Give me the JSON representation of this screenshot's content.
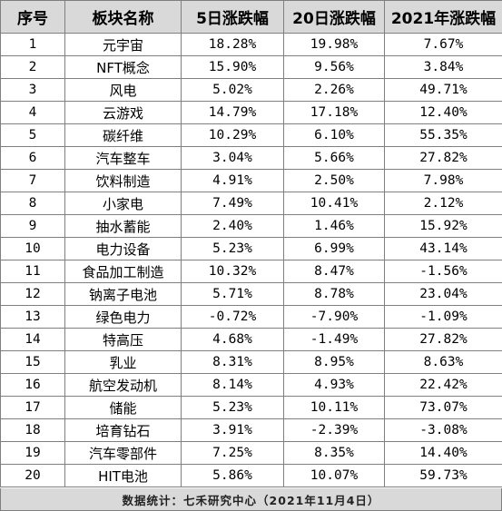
{
  "headers": [
    "序号",
    "板块名称",
    "5日涨跌幅",
    "20日涨跌幅",
    "2021年涨跌幅"
  ],
  "rows": [
    [
      "1",
      "元宇宙",
      "18.28%",
      "19.98%",
      "7.67%"
    ],
    [
      "2",
      "NFT概念",
      "15.90%",
      "9.56%",
      "3.84%"
    ],
    [
      "3",
      "风电",
      "5.02%",
      "2.26%",
      "49.71%"
    ],
    [
      "4",
      "云游戏",
      "14.79%",
      "17.18%",
      "12.40%"
    ],
    [
      "5",
      "碳纤维",
      "10.29%",
      "6.10%",
      "55.35%"
    ],
    [
      "6",
      "汽车整车",
      "3.04%",
      "5.66%",
      "27.82%"
    ],
    [
      "7",
      "饮料制造",
      "4.91%",
      "2.50%",
      "7.98%"
    ],
    [
      "8",
      "小家电",
      "7.49%",
      "10.41%",
      "2.12%"
    ],
    [
      "9",
      "抽水蓄能",
      "2.40%",
      "1.46%",
      "15.92%"
    ],
    [
      "10",
      "电力设备",
      "5.23%",
      "6.99%",
      "43.14%"
    ],
    [
      "11",
      "食品加工制造",
      "10.32%",
      "8.47%",
      "-1.56%"
    ],
    [
      "12",
      "钠离子电池",
      "5.71%",
      "8.78%",
      "23.04%"
    ],
    [
      "13",
      "绿色电力",
      "-0.72%",
      "-7.90%",
      "-1.09%"
    ],
    [
      "14",
      "特高压",
      "4.68%",
      "-1.49%",
      "27.82%"
    ],
    [
      "15",
      "乳业",
      "8.31%",
      "8.95%",
      "8.63%"
    ],
    [
      "16",
      "航空发动机",
      "8.14%",
      "4.93%",
      "22.42%"
    ],
    [
      "17",
      "储能",
      "5.23%",
      "10.11%",
      "73.07%"
    ],
    [
      "18",
      "培育钻石",
      "3.91%",
      "-2.39%",
      "-3.08%"
    ],
    [
      "19",
      "汽车零部件",
      "7.25%",
      "8.35%",
      "14.40%"
    ],
    [
      "20",
      "HIT电池",
      "5.86%",
      "10.07%",
      "59.73%"
    ]
  ],
  "footer": "数据统计：七禾研究中心（2021年11月4日）"
}
